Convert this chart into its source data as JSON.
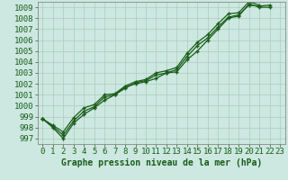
{
  "title": "Graphe pression niveau de la mer (hPa)",
  "bg_color": "#cce8e0",
  "grid_color": "#aaccbb",
  "line_color": "#1a5c1a",
  "spine_color": "#888888",
  "xlim": [
    -0.5,
    23.5
  ],
  "ylim": [
    996.5,
    1009.5
  ],
  "yticks": [
    997,
    998,
    999,
    1000,
    1001,
    1002,
    1003,
    1004,
    1005,
    1006,
    1007,
    1008,
    1009
  ],
  "xticks": [
    0,
    1,
    2,
    3,
    4,
    5,
    6,
    7,
    8,
    9,
    10,
    11,
    12,
    13,
    14,
    15,
    16,
    17,
    18,
    19,
    20,
    21,
    22,
    23
  ],
  "series": [
    [
      998.8,
      998.0,
      997.0,
      998.4,
      999.2,
      999.8,
      1000.5,
      1001.0,
      1001.7,
      1002.0,
      1002.2,
      1002.5,
      1003.0,
      1003.1,
      1004.2,
      1005.0,
      1006.0,
      1007.0,
      1008.0,
      1008.2,
      1009.3,
      1009.0,
      1009.0,
      null
    ],
    [
      998.8,
      998.1,
      997.3,
      998.6,
      999.5,
      999.9,
      1000.8,
      1001.0,
      1001.6,
      1002.1,
      1002.3,
      1002.8,
      1003.0,
      1003.3,
      1004.5,
      1005.5,
      1006.2,
      1007.2,
      1008.1,
      1008.3,
      1009.2,
      1009.1,
      1009.2,
      null
    ],
    [
      998.8,
      998.2,
      997.6,
      998.9,
      999.8,
      1000.1,
      1001.0,
      1001.1,
      1001.8,
      1002.2,
      1002.4,
      1003.0,
      1003.2,
      1003.5,
      1004.8,
      1005.8,
      1006.5,
      1007.5,
      1008.4,
      1008.5,
      1009.5,
      1009.2,
      null,
      null
    ]
  ],
  "markersize": 2.5,
  "linewidth": 0.9,
  "tick_fontsize": 6.5,
  "label_fontsize": 7.0
}
